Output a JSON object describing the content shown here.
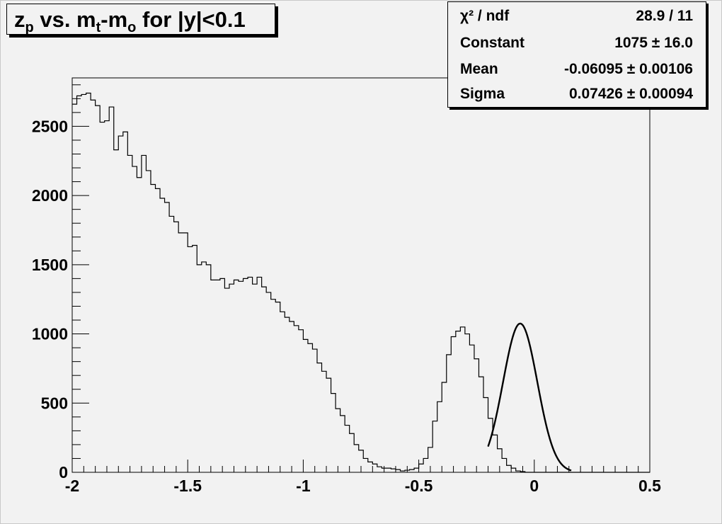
{
  "title": {
    "base1": "z",
    "sub1": "p",
    "mid": " vs. m",
    "sub2": "t",
    "mid2": "-m",
    "sub3": "o",
    "tail": " for |y|<0.1"
  },
  "stats": [
    {
      "key": "χ² / ndf",
      "value": "28.9 / 11"
    },
    {
      "key": "Constant",
      "value": "1075 ± 16.0"
    },
    {
      "key": "Mean",
      "value": "-0.06095 ± 0.00106"
    },
    {
      "key": "Sigma",
      "value": "0.07426 ± 0.00094"
    }
  ],
  "chart_data": {
    "type": "histogram",
    "title": "z_p vs. m_t-m_o for |y|<0.1",
    "xlim": [
      -2,
      0.5
    ],
    "ylim": [
      0,
      2850
    ],
    "x_ticks": [
      -2,
      -1.5,
      -1,
      -0.5,
      0,
      0.5
    ],
    "x_tick_labels": [
      "-2",
      "-1.5",
      "-1",
      "-0.5",
      "0",
      "0.5"
    ],
    "y_ticks": [
      0,
      500,
      1000,
      1500,
      2000,
      2500
    ],
    "y_tick_labels": [
      "0",
      "500",
      "1000",
      "1500",
      "2000",
      "2500"
    ],
    "bin_start": -2.0,
    "bin_width": 0.02,
    "values": [
      2660,
      2720,
      2730,
      2740,
      2690,
      2650,
      2530,
      2540,
      2640,
      2330,
      2430,
      2460,
      2290,
      2210,
      2130,
      2290,
      2180,
      2080,
      2050,
      1980,
      1950,
      1850,
      1810,
      1730,
      1730,
      1630,
      1640,
      1500,
      1520,
      1500,
      1390,
      1390,
      1400,
      1330,
      1360,
      1390,
      1380,
      1400,
      1410,
      1360,
      1410,
      1340,
      1300,
      1250,
      1230,
      1160,
      1120,
      1090,
      1060,
      1030,
      960,
      930,
      890,
      790,
      730,
      680,
      570,
      460,
      410,
      340,
      280,
      200,
      160,
      100,
      75,
      60,
      40,
      30,
      30,
      25,
      20,
      10,
      15,
      20,
      30,
      60,
      100,
      180,
      370,
      510,
      650,
      850,
      980,
      1020,
      1050,
      1000,
      920,
      820,
      690,
      540,
      390,
      270,
      170,
      100,
      50,
      30,
      10,
      5,
      0,
      0,
      0,
      0,
      0,
      0,
      0,
      0,
      0,
      0,
      0,
      0,
      0,
      0,
      0,
      0,
      0,
      0,
      0,
      0,
      0,
      0,
      0,
      0,
      0,
      0,
      0
    ],
    "fit": {
      "function": "gaus",
      "constant": 1075,
      "mean": -0.06095,
      "sigma": 0.07426,
      "range": [
        -0.2,
        0.16
      ]
    }
  }
}
